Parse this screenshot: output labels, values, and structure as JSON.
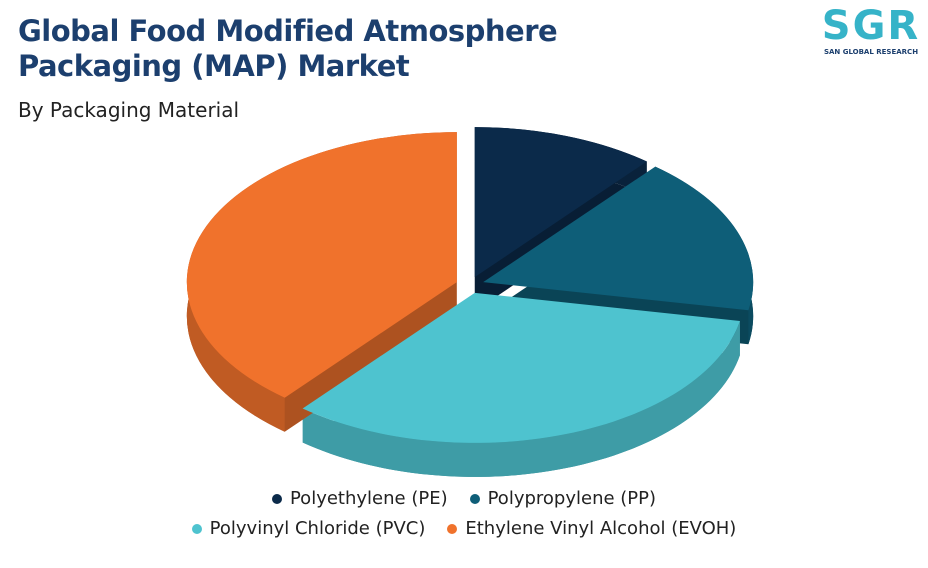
{
  "chart_data": {
    "type": "pie3d",
    "title": "Global Food Modified Atmosphere Packaging (MAP) Market",
    "subtitle": "By Packaging Material",
    "categories": [
      "Polyethylene (PE)",
      "Polypropylene (PP)",
      "Polyvinyl Chloride (PVC)",
      "Ethylene Vinyl Alcohol (EVOH)"
    ],
    "values": [
      11,
      17,
      33,
      39
    ],
    "colors": [
      "#0b2a4a",
      "#0e5e78",
      "#4ec3cf",
      "#f0722c"
    ]
  },
  "brand": {
    "mark": "SGR",
    "name": "SAN GLOBAL RESEARCH"
  }
}
